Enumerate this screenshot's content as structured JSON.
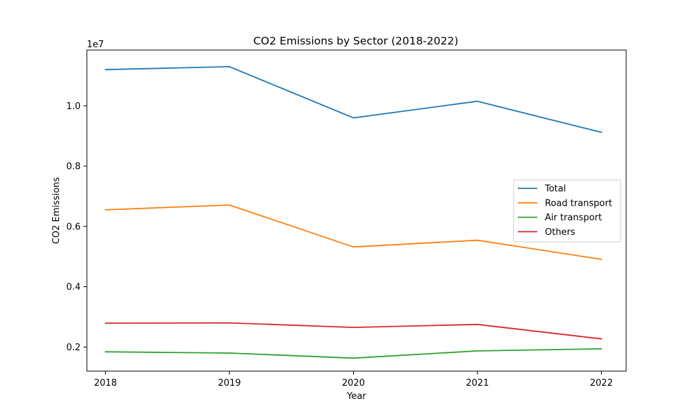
{
  "chart_data": {
    "type": "line",
    "title": "CO2 Emissions by Sector (2018-2022)",
    "xlabel": "Year",
    "ylabel": "CO2 Emissions",
    "y_offset_label": "1e7",
    "x": [
      2018,
      2019,
      2020,
      2021,
      2022
    ],
    "x_tick_labels": [
      "2018",
      "2019",
      "2020",
      "2021",
      "2022"
    ],
    "y_ticks": [
      0.2,
      0.4,
      0.6,
      0.8,
      1.0
    ],
    "y_tick_labels": [
      "0.2",
      "0.4",
      "0.6",
      "0.8",
      "1.0"
    ],
    "ylim": [
      0.12,
      1.185
    ],
    "xlim": [
      2017.85,
      2022.2
    ],
    "grid": false,
    "legend_position": "center-right",
    "series": [
      {
        "name": "Total",
        "color": "#1f77b4",
        "values": [
          1.12,
          1.13,
          0.96,
          1.015,
          0.912
        ]
      },
      {
        "name": "Road transport",
        "color": "#ff7f0e",
        "values": [
          0.655,
          0.671,
          0.532,
          0.554,
          0.491
        ]
      },
      {
        "name": "Air transport",
        "color": "#2ca02c",
        "values": [
          0.184,
          0.18,
          0.163,
          0.187,
          0.194
        ]
      },
      {
        "name": "Others",
        "color": "#d62728",
        "values": [
          0.279,
          0.28,
          0.265,
          0.275,
          0.227
        ]
      }
    ]
  }
}
